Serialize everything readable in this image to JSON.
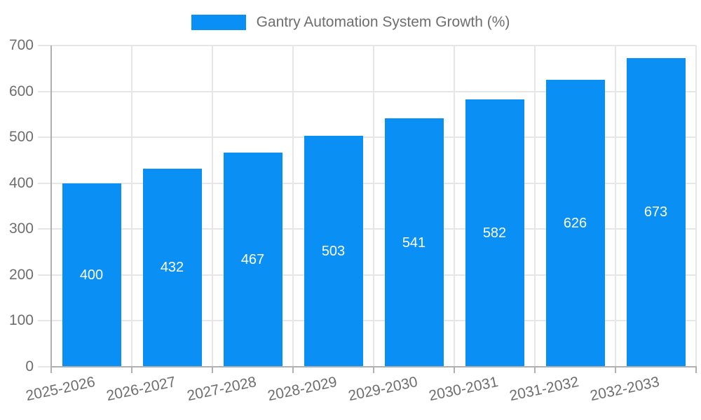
{
  "legend": {
    "label": "Gantry Automation System Growth (%)"
  },
  "colors": {
    "bar": "#0a90f5",
    "grid": "#e6e6e6",
    "axis": "#b0b0b0",
    "tick_text": "#6e6e6e",
    "bar_label_text": "#ffffff",
    "background": "#ffffff"
  },
  "chart_data": {
    "type": "bar",
    "title": "Gantry Automation System Growth (%)",
    "categories": [
      "2025-2026",
      "2026-2027",
      "2027-2028",
      "2028-2029",
      "2029-2030",
      "2030-2031",
      "2031-2032",
      "2032-2033"
    ],
    "values": [
      400,
      432,
      467,
      503,
      541,
      582,
      626,
      673
    ],
    "xlabel": "",
    "ylabel": "",
    "ylim": [
      0,
      700
    ],
    "yticks": [
      0,
      100,
      200,
      300,
      400,
      500,
      600,
      700
    ],
    "grid": true,
    "legend_position": "top",
    "value_label_position": "inside-center",
    "x_label_rotation_deg": -12
  }
}
